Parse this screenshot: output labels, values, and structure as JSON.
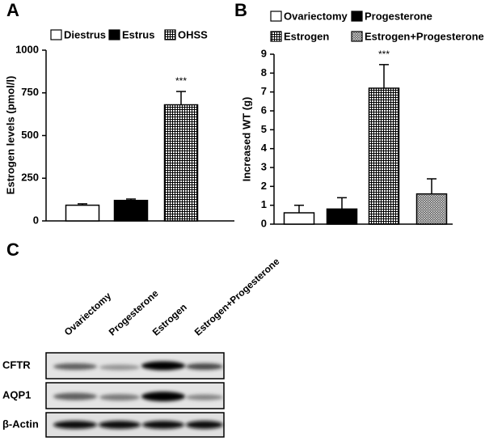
{
  "chart_data": [
    {
      "type": "bar",
      "panel": "A",
      "ylabel": "Estrogen levels (pmol/l)",
      "categories": [
        "Diestrus",
        "Estrus",
        "OHSS"
      ],
      "values": [
        92,
        120,
        680
      ],
      "errors": [
        8,
        8,
        78
      ],
      "fills": [
        "white",
        "black",
        "grid"
      ],
      "annotations": [
        null,
        null,
        "***"
      ],
      "ylim": [
        0,
        1000
      ],
      "yticks": [
        0,
        250,
        500,
        750,
        1000
      ]
    },
    {
      "type": "bar",
      "panel": "B",
      "ylabel": "Increased WT (g)",
      "categories": [
        "Ovariectomy",
        "Progesterone",
        "Estrogen",
        "Estrogen+Progesterone"
      ],
      "values": [
        0.6,
        0.8,
        7.2,
        1.6
      ],
      "errors": [
        0.4,
        0.6,
        1.25,
        0.8
      ],
      "fills": [
        "white",
        "black",
        "grid",
        "crosshatch"
      ],
      "annotations": [
        null,
        null,
        "***",
        null
      ],
      "ylim": [
        0,
        9
      ],
      "yticks": [
        0,
        1,
        2,
        3,
        4,
        5,
        6,
        7,
        8,
        9
      ]
    }
  ],
  "blot": {
    "panel": "C",
    "lanes": [
      "Ovariectomy",
      "Progesterone",
      "Estrogen",
      "Estrogen+Progesterone"
    ],
    "rows": [
      "CFTR",
      "AQP1",
      "β-Actin"
    ]
  }
}
